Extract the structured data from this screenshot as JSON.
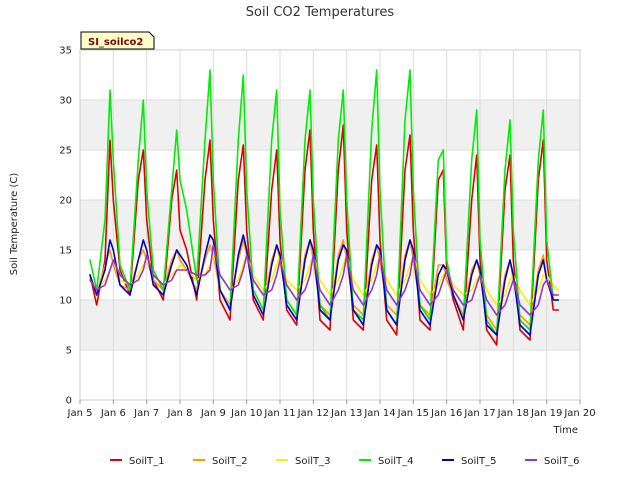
{
  "chart_data": {
    "type": "line",
    "title": "Soil CO2 Temperatures",
    "xlabel": "Time",
    "ylabel": "Soil Temperature (C)",
    "site_label": "SI_soilco2",
    "x_ticks": [
      "Jan 5",
      "Jan 6",
      "Jan 7",
      "Jan 8",
      "Jan 9",
      "Jan 10",
      "Jan 11",
      "Jan 12",
      "Jan 13",
      "Jan 14",
      "Jan 15",
      "Jan 16",
      "Jan 17",
      "Jan 18",
      "Jan 19",
      "Jan 20"
    ],
    "xlim": [
      5,
      20
    ],
    "ylim": [
      0,
      35
    ],
    "y_ticks": [
      0,
      5,
      10,
      15,
      20,
      25,
      30,
      35
    ],
    "grid": true,
    "legend_position": "bottom",
    "x": [
      5.3,
      5.5,
      5.75,
      5.9,
      6.0,
      6.2,
      6.5,
      6.75,
      6.9,
      7.0,
      7.2,
      7.5,
      7.75,
      7.9,
      8.0,
      8.2,
      8.5,
      8.75,
      8.9,
      9.0,
      9.2,
      9.5,
      9.75,
      9.9,
      10.0,
      10.2,
      10.5,
      10.75,
      10.9,
      11.0,
      11.2,
      11.5,
      11.75,
      11.9,
      12.0,
      12.2,
      12.5,
      12.75,
      12.9,
      13.0,
      13.2,
      13.5,
      13.75,
      13.9,
      14.0,
      14.2,
      14.5,
      14.75,
      14.9,
      15.0,
      15.2,
      15.5,
      15.75,
      15.9,
      16.0,
      16.2,
      16.5,
      16.75,
      16.9,
      17.0,
      17.2,
      17.5,
      17.75,
      17.9,
      18.0,
      18.2,
      18.5,
      18.75,
      18.9,
      19.0,
      19.2,
      19.35
    ],
    "series": [
      {
        "name": "SoilT_1",
        "color": "#e00000",
        "values": [
          12.5,
          9.5,
          14.0,
          26.0,
          20.0,
          13.0,
          10.5,
          22.0,
          25.0,
          18.0,
          12.0,
          10.0,
          20.0,
          23.0,
          17.0,
          15.0,
          10.0,
          22.0,
          26.0,
          18.0,
          10.0,
          8.0,
          22.0,
          25.5,
          17.0,
          10.0,
          8.0,
          21.0,
          25.0,
          16.0,
          9.0,
          7.5,
          23.0,
          27.0,
          17.0,
          8.0,
          7.0,
          23.0,
          27.5,
          17.0,
          8.0,
          7.0,
          22.0,
          25.5,
          16.0,
          8.0,
          6.5,
          23.0,
          26.5,
          17.0,
          8.0,
          7.0,
          22.0,
          23.0,
          13.0,
          10.0,
          7.0,
          20.0,
          24.5,
          14.0,
          7.0,
          5.5,
          21.0,
          24.5,
          14.0,
          7.0,
          6.0,
          22.0,
          26.0,
          14.0,
          9.0,
          9.0
        ]
      },
      {
        "name": "SoilT_2",
        "color": "#ff9900",
        "values": [
          12.5,
          10.5,
          13.5,
          15.0,
          13.5,
          11.5,
          11.0,
          14.0,
          15.0,
          14.0,
          12.0,
          11.0,
          14.0,
          15.0,
          14.0,
          13.0,
          11.0,
          14.0,
          15.5,
          14.5,
          11.0,
          9.5,
          14.0,
          16.0,
          14.5,
          11.0,
          9.0,
          14.0,
          15.5,
          14.0,
          10.0,
          8.5,
          14.5,
          16.0,
          14.0,
          9.5,
          8.5,
          14.5,
          16.0,
          14.0,
          9.5,
          8.5,
          14.0,
          15.5,
          14.0,
          9.5,
          8.5,
          14.5,
          16.0,
          14.0,
          9.5,
          8.5,
          13.5,
          13.5,
          12.0,
          10.5,
          8.5,
          13.0,
          14.0,
          12.5,
          8.5,
          7.0,
          12.5,
          14.0,
          12.0,
          8.5,
          7.5,
          13.0,
          14.5,
          12.0,
          10.0,
          10.0
        ]
      },
      {
        "name": "SoilT_3",
        "color": "#ffee00",
        "values": [
          12.0,
          11.0,
          12.0,
          13.0,
          14.0,
          12.0,
          11.5,
          12.5,
          13.5,
          14.0,
          12.5,
          11.5,
          12.5,
          13.0,
          13.5,
          13.0,
          12.0,
          12.5,
          13.5,
          14.5,
          12.5,
          11.0,
          12.0,
          13.5,
          14.5,
          12.5,
          11.0,
          12.0,
          13.5,
          14.5,
          12.0,
          11.0,
          12.0,
          13.5,
          14.5,
          12.0,
          10.5,
          12.0,
          13.5,
          14.5,
          12.0,
          10.5,
          12.0,
          13.5,
          14.5,
          12.0,
          10.5,
          12.0,
          13.5,
          14.5,
          12.0,
          10.5,
          11.5,
          12.5,
          13.0,
          11.5,
          10.5,
          11.0,
          12.0,
          12.5,
          11.0,
          9.5,
          10.5,
          12.0,
          12.5,
          11.0,
          9.5,
          11.0,
          12.5,
          12.5,
          11.5,
          11.0
        ]
      },
      {
        "name": "SoilT_4",
        "color": "#00ee00",
        "values": [
          14.0,
          11.0,
          18.0,
          31.0,
          24.0,
          13.5,
          11.0,
          24.0,
          30.0,
          21.0,
          13.0,
          11.0,
          21.0,
          27.0,
          22.0,
          19.0,
          12.0,
          26.0,
          33.0,
          22.0,
          11.0,
          9.0,
          26.0,
          32.5,
          21.0,
          11.0,
          9.0,
          26.0,
          31.0,
          19.0,
          10.0,
          8.5,
          26.0,
          31.0,
          20.0,
          9.5,
          8.0,
          26.0,
          31.0,
          20.0,
          9.0,
          8.0,
          27.0,
          33.0,
          21.0,
          9.0,
          7.5,
          28.0,
          33.0,
          21.0,
          9.5,
          8.0,
          24.0,
          25.0,
          14.0,
          10.5,
          8.0,
          24.0,
          29.0,
          16.0,
          8.0,
          6.5,
          23.0,
          28.0,
          17.0,
          8.0,
          7.0,
          24.0,
          29.0,
          16.0,
          10.0,
          10.0
        ]
      },
      {
        "name": "SoilT_5",
        "color": "#0000cc",
        "values": [
          12.5,
          10.5,
          13.0,
          16.0,
          15.0,
          11.5,
          10.5,
          14.0,
          16.0,
          15.0,
          11.5,
          10.5,
          13.5,
          15.0,
          14.5,
          13.5,
          10.5,
          14.5,
          16.5,
          16.0,
          11.0,
          9.0,
          14.5,
          16.5,
          15.0,
          10.5,
          8.5,
          13.5,
          15.5,
          14.5,
          9.5,
          8.0,
          14.0,
          16.0,
          15.0,
          9.0,
          8.0,
          14.0,
          15.5,
          15.0,
          9.0,
          7.5,
          13.5,
          15.5,
          15.0,
          9.0,
          7.5,
          14.0,
          16.0,
          15.0,
          9.0,
          7.5,
          12.5,
          13.5,
          13.0,
          10.5,
          8.0,
          12.5,
          14.0,
          13.0,
          7.5,
          6.5,
          12.0,
          14.0,
          12.5,
          7.5,
          6.5,
          12.5,
          14.0,
          12.0,
          10.0,
          10.0
        ]
      },
      {
        "name": "SoilT_6",
        "color": "#9933cc",
        "values": [
          12.0,
          11.0,
          11.5,
          13.0,
          14.0,
          12.5,
          11.5,
          12.0,
          13.0,
          14.5,
          12.5,
          11.5,
          12.0,
          13.0,
          13.0,
          13.0,
          12.5,
          12.5,
          13.0,
          15.5,
          12.5,
          11.0,
          11.5,
          13.0,
          14.5,
          12.0,
          10.5,
          11.0,
          12.5,
          14.0,
          11.5,
          10.0,
          11.0,
          12.5,
          14.5,
          11.0,
          9.5,
          11.0,
          12.5,
          14.5,
          11.0,
          9.5,
          11.0,
          12.5,
          14.5,
          11.0,
          9.5,
          11.0,
          12.5,
          14.5,
          11.0,
          9.5,
          10.5,
          12.0,
          13.0,
          11.0,
          9.5,
          10.0,
          11.5,
          12.5,
          10.0,
          8.5,
          9.5,
          11.0,
          12.0,
          9.5,
          8.5,
          9.5,
          11.5,
          12.0,
          10.5,
          10.5
        ]
      }
    ]
  },
  "colors": {
    "band": "#f0f0f0",
    "grid": "#dddddd",
    "axis": "#cccccc",
    "site_box_fill": "#ffffcc",
    "site_text": "#8b0000"
  }
}
